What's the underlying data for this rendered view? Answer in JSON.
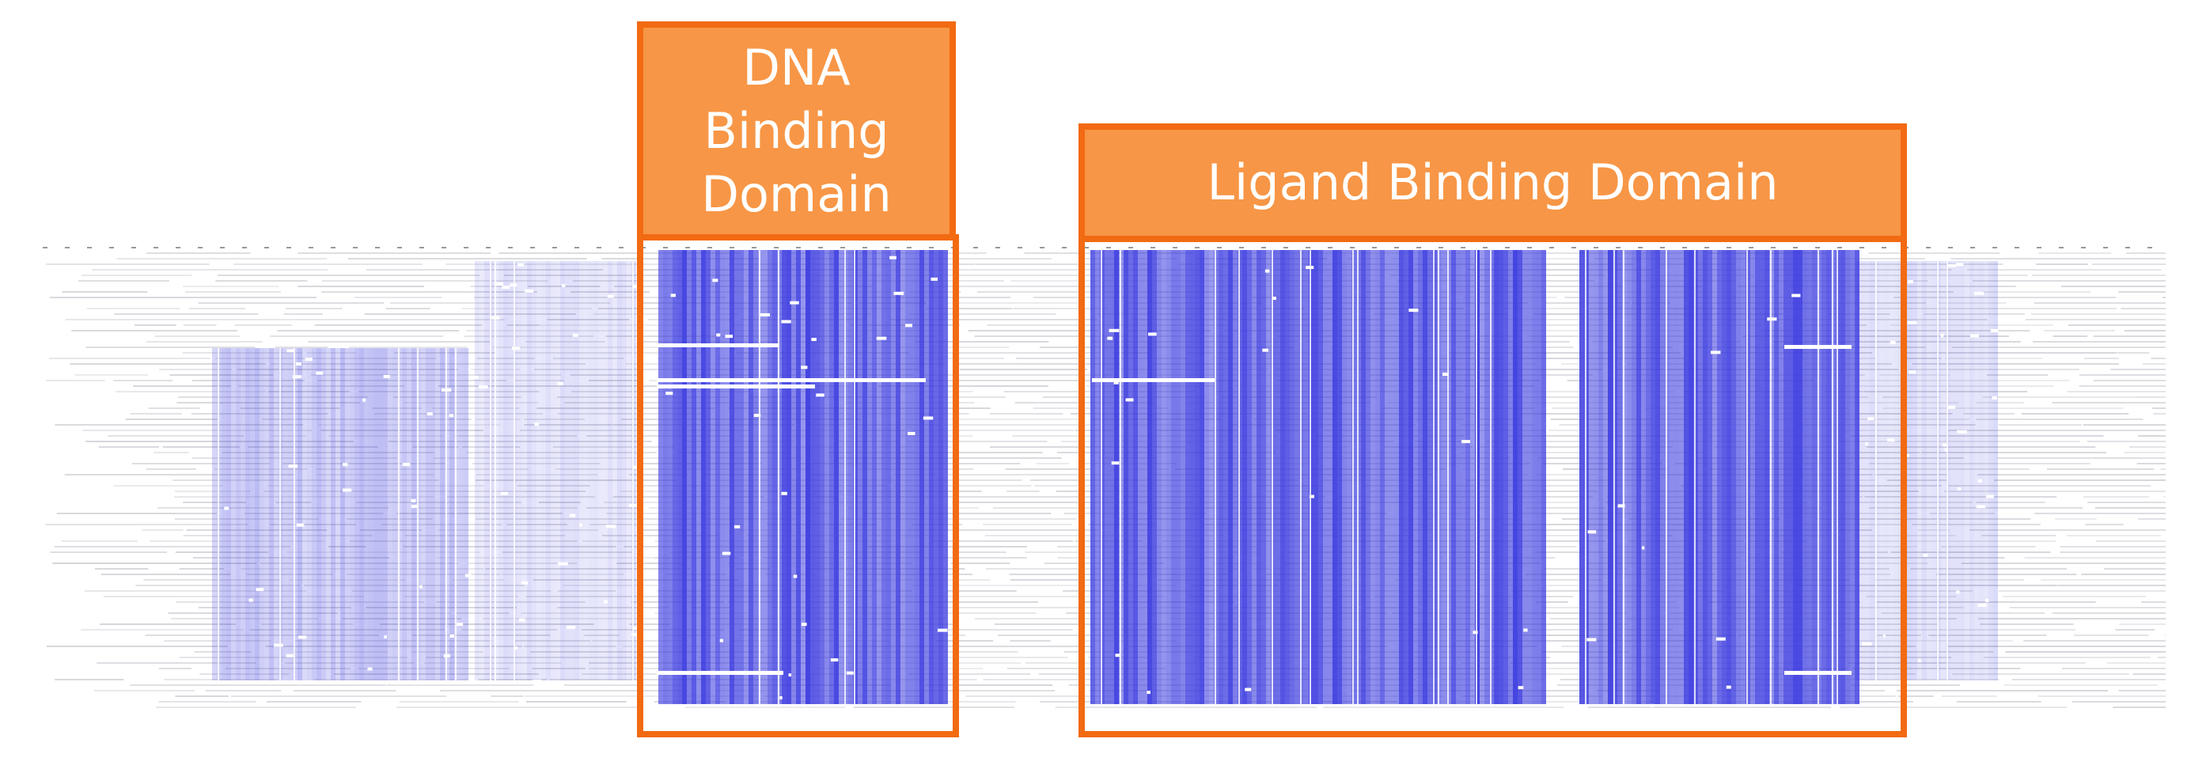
{
  "domains": [
    {
      "label": "DNA Binding Domain"
    },
    {
      "label": "Ligand Binding Domain"
    }
  ]
}
